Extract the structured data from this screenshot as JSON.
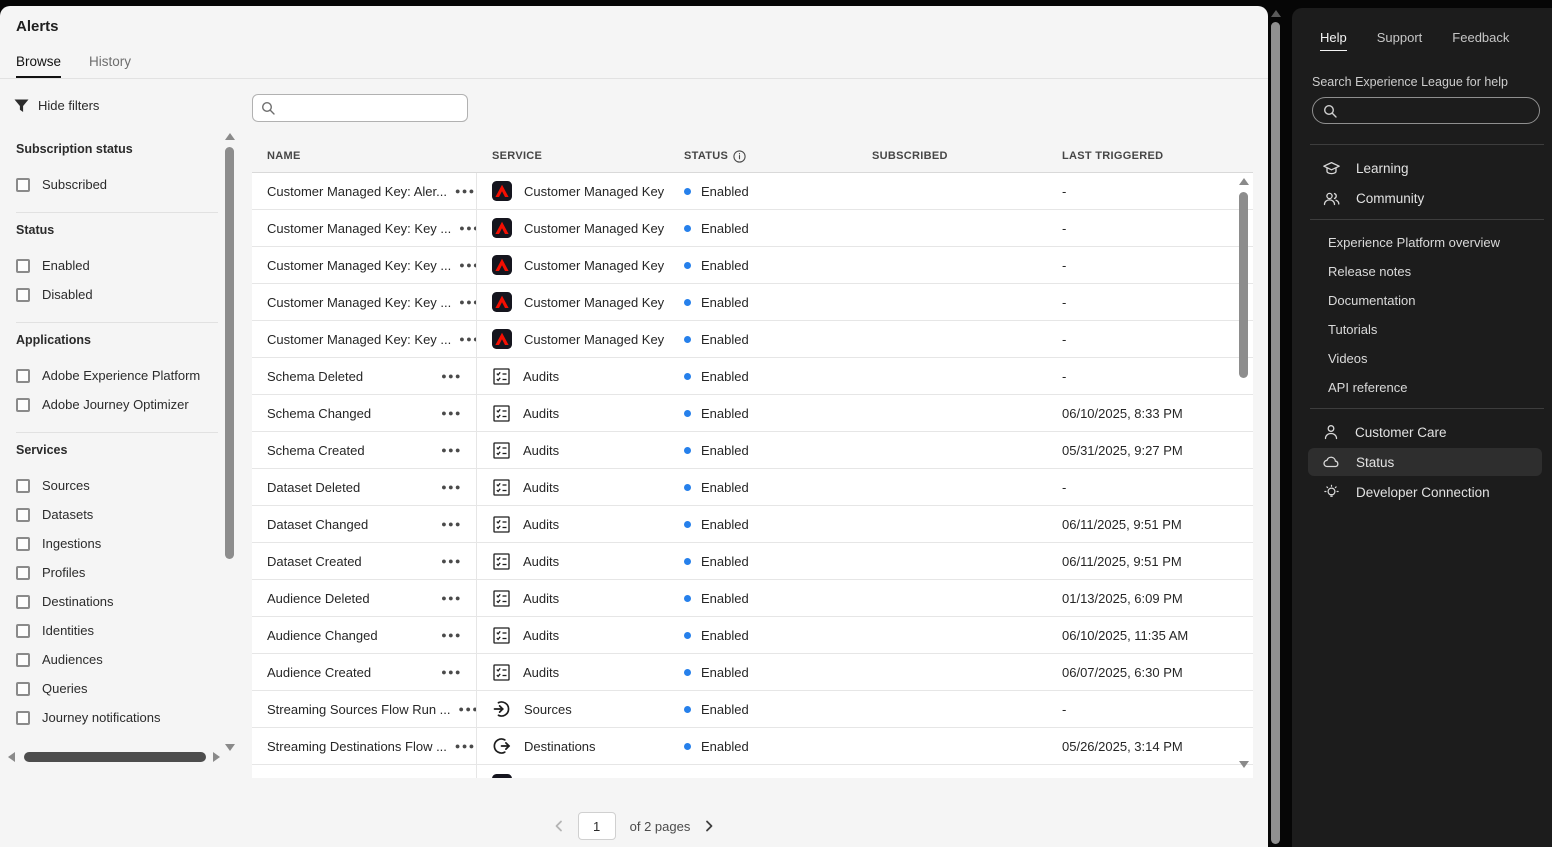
{
  "page": {
    "title": "Alerts"
  },
  "view_tabs": [
    {
      "label": "Browse",
      "active": true
    },
    {
      "label": "History",
      "active": false
    }
  ],
  "filter_bar": {
    "hide_filters_label": "Hide filters",
    "search_value": ""
  },
  "filters": {
    "sections": [
      {
        "title": "Subscription status",
        "options": [
          "Subscribed"
        ]
      },
      {
        "title": "Status",
        "options": [
          "Enabled",
          "Disabled"
        ]
      },
      {
        "title": "Applications",
        "options": [
          "Adobe Experience Platform",
          "Adobe Journey Optimizer"
        ]
      },
      {
        "title": "Services",
        "options": [
          "Sources",
          "Datasets",
          "Ingestions",
          "Profiles",
          "Destinations",
          "Identities",
          "Audiences",
          "Queries",
          "Journey notifications"
        ]
      }
    ]
  },
  "table": {
    "columns": [
      {
        "label": "NAME"
      },
      {
        "label": "SERVICE"
      },
      {
        "label": "STATUS",
        "info": true
      },
      {
        "label": "SUBSCRIBED"
      },
      {
        "label": "LAST TRIGGERED"
      }
    ],
    "rows": [
      {
        "name": "Customer Managed Key: Aler...",
        "service": "Customer Managed Key",
        "service_icon": "adobe-logo",
        "status": "Enabled",
        "subscribed": "",
        "last_triggered": "-"
      },
      {
        "name": "Customer Managed Key: Key ...",
        "service": "Customer Managed Key",
        "service_icon": "adobe-logo",
        "status": "Enabled",
        "subscribed": "",
        "last_triggered": "-"
      },
      {
        "name": "Customer Managed Key: Key ...",
        "service": "Customer Managed Key",
        "service_icon": "adobe-logo",
        "status": "Enabled",
        "subscribed": "",
        "last_triggered": "-"
      },
      {
        "name": "Customer Managed Key: Key ...",
        "service": "Customer Managed Key",
        "service_icon": "adobe-logo",
        "status": "Enabled",
        "subscribed": "",
        "last_triggered": "-"
      },
      {
        "name": "Customer Managed Key: Key ...",
        "service": "Customer Managed Key",
        "service_icon": "adobe-logo",
        "status": "Enabled",
        "subscribed": "",
        "last_triggered": "-"
      },
      {
        "name": "Schema Deleted",
        "service": "Audits",
        "service_icon": "audits",
        "status": "Enabled",
        "subscribed": "",
        "last_triggered": "-"
      },
      {
        "name": "Schema Changed",
        "service": "Audits",
        "service_icon": "audits",
        "status": "Enabled",
        "subscribed": "",
        "last_triggered": "06/10/2025, 8:33 PM"
      },
      {
        "name": "Schema Created",
        "service": "Audits",
        "service_icon": "audits",
        "status": "Enabled",
        "subscribed": "",
        "last_triggered": "05/31/2025, 9:27 PM"
      },
      {
        "name": "Dataset Deleted",
        "service": "Audits",
        "service_icon": "audits",
        "status": "Enabled",
        "subscribed": "",
        "last_triggered": "-"
      },
      {
        "name": "Dataset Changed",
        "service": "Audits",
        "service_icon": "audits",
        "status": "Enabled",
        "subscribed": "",
        "last_triggered": "06/11/2025, 9:51 PM"
      },
      {
        "name": "Dataset Created",
        "service": "Audits",
        "service_icon": "audits",
        "status": "Enabled",
        "subscribed": "",
        "last_triggered": "06/11/2025, 9:51 PM"
      },
      {
        "name": "Audience Deleted",
        "service": "Audits",
        "service_icon": "audits",
        "status": "Enabled",
        "subscribed": "",
        "last_triggered": "01/13/2025, 6:09 PM"
      },
      {
        "name": "Audience Changed",
        "service": "Audits",
        "service_icon": "audits",
        "status": "Enabled",
        "subscribed": "",
        "last_triggered": "06/10/2025, 11:35 AM"
      },
      {
        "name": "Audience Created",
        "service": "Audits",
        "service_icon": "audits",
        "status": "Enabled",
        "subscribed": "",
        "last_triggered": "06/07/2025, 6:30 PM"
      },
      {
        "name": "Streaming Sources Flow Run ...",
        "service": "Sources",
        "service_icon": "sources",
        "status": "Enabled",
        "subscribed": "",
        "last_triggered": "-"
      },
      {
        "name": "Streaming Destinations Flow ...",
        "service": "Destinations",
        "service_icon": "destinations",
        "status": "Enabled",
        "subscribed": "",
        "last_triggered": "05/26/2025, 3:14 PM"
      }
    ]
  },
  "pagination": {
    "page": "1",
    "total_label": "of 2 pages"
  },
  "help_panel": {
    "tabs": [
      {
        "label": "Help",
        "active": true
      },
      {
        "label": "Support",
        "active": false
      },
      {
        "label": "Feedback",
        "active": false
      }
    ],
    "search_label": "Search Experience League for help",
    "search_value": "",
    "primary_links": [
      {
        "label": "Learning",
        "icon": "graduation-cap"
      },
      {
        "label": "Community",
        "icon": "community"
      }
    ],
    "doc_links": [
      "Experience Platform overview",
      "Release notes",
      "Documentation",
      "Tutorials",
      "Videos",
      "API reference"
    ],
    "support_links": [
      {
        "label": "Customer Care",
        "icon": "person",
        "highlighted": false
      },
      {
        "label": "Status",
        "icon": "cloud",
        "highlighted": true
      },
      {
        "label": "Developer Connection",
        "icon": "lightbulb",
        "highlighted": false
      }
    ]
  },
  "colors": {
    "accent_blue": "#2680eb",
    "adobe_red": "#f40f02",
    "panel_bg": "#1c1c1c"
  }
}
